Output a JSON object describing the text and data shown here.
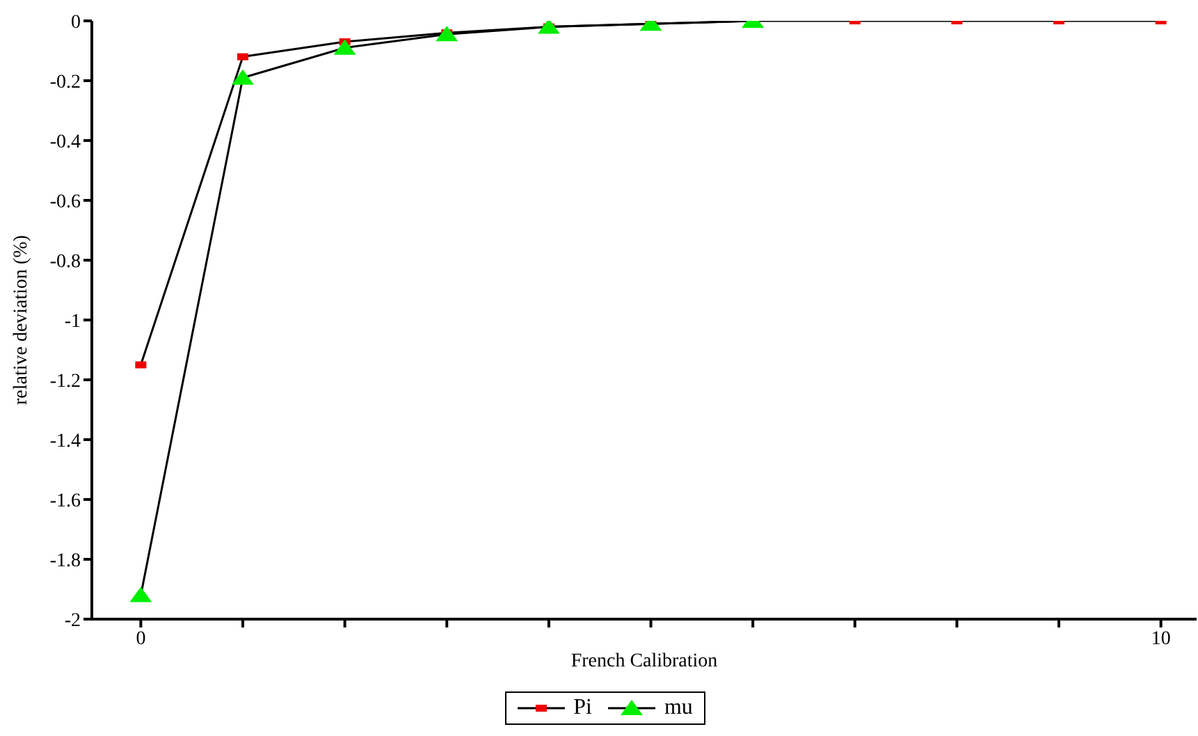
{
  "chart_data": {
    "type": "line",
    "xlabel": "French Calibration",
    "ylabel": "relative deviation (%)",
    "x": [
      0,
      1,
      2,
      3,
      4,
      5,
      6,
      7,
      8,
      9,
      10
    ],
    "series": [
      {
        "name": "Pi",
        "color": "#ee0000",
        "marker": "square",
        "values": [
          -1.15,
          -0.12,
          -0.07,
          -0.04,
          -0.02,
          -0.01,
          0,
          0,
          0,
          0,
          0
        ]
      },
      {
        "name": "mu",
        "color": "#00ee00",
        "marker": "triangle",
        "x": [
          0,
          1,
          2,
          3,
          4,
          5,
          6
        ],
        "values": [
          -1.92,
          -0.19,
          -0.09,
          -0.045,
          -0.02,
          -0.01,
          0
        ]
      }
    ],
    "xlim": [
      -0.48,
      10.35
    ],
    "xticks": [
      0,
      {
        "value": 1,
        "label": null
      },
      {
        "value": 2,
        "label": null
      },
      {
        "value": 3,
        "label": null
      },
      {
        "value": 4,
        "label": null
      },
      {
        "value": 5,
        "label": null
      },
      {
        "value": 6,
        "label": null
      },
      {
        "value": 7,
        "label": null
      },
      {
        "value": 8,
        "label": null
      },
      {
        "value": 9,
        "label": null
      },
      10
    ],
    "ylim": [
      -2,
      0
    ],
    "yticks": [
      0,
      -0.2,
      -0.4,
      -0.6,
      -0.8,
      -1,
      -1.2,
      -1.4,
      -1.6,
      -1.8,
      -2
    ],
    "grid": false,
    "legend": "bottom",
    "line_style": "solid"
  }
}
